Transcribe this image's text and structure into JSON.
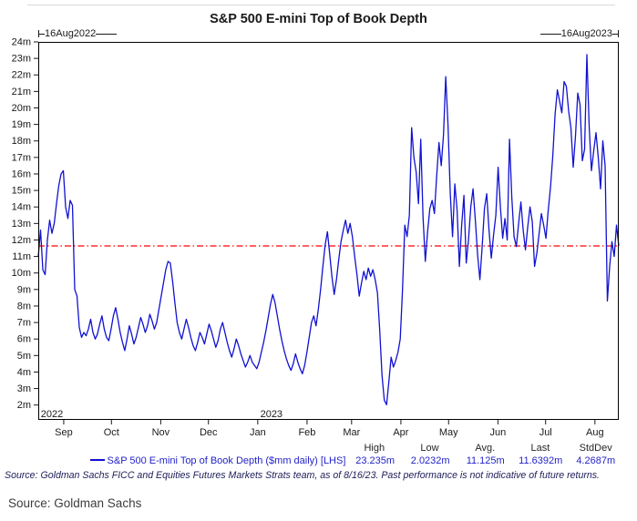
{
  "chart_data": {
    "type": "line",
    "title": "S&P 500 E-mini Top of Book Depth",
    "range_start": "16Aug2022",
    "range_end": "16Aug2023",
    "ylim": [
      1.1,
      24
    ],
    "y_ticks": [
      2,
      3,
      4,
      5,
      6,
      7,
      8,
      9,
      10,
      11,
      12,
      13,
      14,
      15,
      16,
      17,
      18,
      19,
      20,
      21,
      22,
      23,
      24
    ],
    "y_suffix": "m",
    "total_days": 365,
    "months": [
      {
        "label": "Sep",
        "day": 16
      },
      {
        "label": "Oct",
        "day": 46
      },
      {
        "label": "Nov",
        "day": 77
      },
      {
        "label": "Dec",
        "day": 107
      },
      {
        "label": "Jan",
        "day": 138
      },
      {
        "label": "Feb",
        "day": 169
      },
      {
        "label": "Mar",
        "day": 197
      },
      {
        "label": "Apr",
        "day": 228
      },
      {
        "label": "May",
        "day": 258
      },
      {
        "label": "Jun",
        "day": 289
      },
      {
        "label": "Jul",
        "day": 319
      },
      {
        "label": "Aug",
        "day": 350
      }
    ],
    "year_labels": [
      {
        "text": "2022",
        "day": 1
      },
      {
        "text": "2023",
        "day": 139
      }
    ],
    "reference_line": {
      "value": 11.6392,
      "color": "#ff0000",
      "style": "dash-dot"
    },
    "grid": "off",
    "legend_position": "bottom",
    "series": [
      {
        "name": "S&P 500 E-mini Top of Book Depth ($mm daily) [LHS]",
        "color": "#1111d2",
        "values": [
          11.0,
          12.6,
          10.2,
          9.9,
          12.0,
          13.2,
          12.4,
          13.0,
          14.2,
          15.3,
          16.0,
          16.2,
          14.0,
          13.3,
          14.4,
          14.1,
          9.0,
          8.6,
          6.7,
          6.1,
          6.4,
          6.2,
          6.6,
          7.2,
          6.4,
          6.0,
          6.3,
          6.9,
          7.4,
          6.6,
          6.1,
          5.9,
          6.6,
          7.4,
          7.9,
          7.2,
          6.4,
          5.8,
          5.3,
          6.0,
          6.8,
          6.3,
          5.7,
          6.1,
          6.7,
          7.3,
          6.9,
          6.4,
          6.8,
          7.5,
          7.1,
          6.6,
          7.0,
          7.8,
          8.6,
          9.4,
          10.2,
          10.7,
          10.6,
          9.5,
          8.2,
          7.0,
          6.4,
          6.0,
          6.6,
          7.2,
          6.7,
          6.1,
          5.6,
          5.3,
          5.8,
          6.4,
          6.1,
          5.7,
          6.3,
          6.9,
          6.5,
          6.0,
          5.5,
          5.9,
          6.6,
          7.0,
          6.4,
          5.8,
          5.3,
          4.9,
          5.4,
          6.0,
          5.6,
          5.1,
          4.7,
          4.3,
          4.6,
          5.0,
          4.6,
          4.4,
          4.2,
          4.6,
          5.2,
          5.8,
          6.5,
          7.3,
          8.1,
          8.7,
          8.2,
          7.4,
          6.6,
          5.9,
          5.3,
          4.8,
          4.4,
          4.1,
          4.5,
          5.1,
          4.6,
          4.2,
          3.9,
          4.4,
          5.2,
          6.1,
          7.0,
          7.4,
          6.8,
          7.8,
          9.0,
          10.4,
          11.7,
          12.5,
          11.2,
          9.8,
          8.7,
          9.6,
          10.8,
          11.9,
          12.6,
          13.2,
          12.4,
          13.0,
          12.2,
          11.0,
          9.9,
          8.6,
          9.4,
          10.1,
          9.6,
          10.3,
          9.8,
          10.2,
          9.6,
          8.8,
          6.5,
          3.8,
          2.3,
          2.0232,
          3.4,
          4.9,
          4.3,
          4.7,
          5.2,
          6.0,
          9.0,
          12.9,
          12.2,
          13.5,
          18.8,
          17.0,
          16.1,
          14.2,
          18.1,
          13.4,
          10.7,
          12.5,
          13.9,
          14.4,
          13.6,
          15.9,
          17.9,
          16.5,
          18.4,
          21.9,
          19.0,
          14.8,
          12.2,
          15.4,
          13.8,
          10.4,
          12.9,
          14.7,
          10.6,
          12.0,
          14.0,
          15.1,
          13.2,
          11.1,
          9.6,
          11.6,
          13.9,
          14.8,
          12.6,
          10.9,
          12.3,
          13.5,
          16.4,
          14.0,
          12.1,
          13.3,
          12.0,
          18.1,
          14.6,
          12.2,
          11.6,
          13.0,
          14.3,
          12.6,
          11.4,
          12.8,
          14.0,
          13.1,
          10.4,
          11.2,
          12.4,
          13.6,
          12.9,
          12.1,
          13.8,
          15.2,
          17.1,
          19.6,
          21.1,
          20.4,
          19.7,
          21.6,
          21.3,
          19.8,
          18.8,
          16.4,
          18.3,
          20.9,
          20.2,
          16.8,
          17.5,
          23.235,
          18.9,
          16.2,
          17.4,
          18.5,
          17.0,
          15.1,
          18.0,
          16.5,
          8.3,
          10.4,
          11.9,
          11.0,
          12.9,
          11.6392
        ]
      }
    ],
    "stats": {
      "headers": [
        "High",
        "Low",
        "Avg.",
        "Last",
        "StdDev"
      ],
      "values": [
        "23.235m",
        "2.0232m",
        "11.125m",
        "11.6392m",
        "4.2687m"
      ]
    }
  },
  "footer": {
    "disclaimer": "Source: Goldman Sachs FICC and Equities Futures Markets Strats team, as of 8/16/23. Past performance is not indicative of future returns.",
    "source": "Source: Goldman Sachs"
  }
}
